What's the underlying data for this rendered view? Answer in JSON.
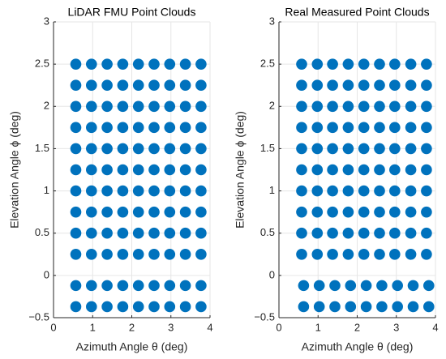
{
  "chart_data": [
    {
      "type": "scatter",
      "title": "LiDAR FMU Point Clouds",
      "xlabel": "Azimuth Angle θ (deg)",
      "ylabel": "Elevation Angle ϕ (deg)",
      "xlim": [
        0,
        4
      ],
      "ylim": [
        -0.5,
        3
      ],
      "xticks": [
        0,
        1,
        2,
        3,
        4
      ],
      "yticks": [
        {
          "value": -0.5,
          "label": "−0.5"
        },
        0,
        0.5,
        1,
        1.5,
        2,
        2.5,
        3
      ],
      "grid": true,
      "color": "#0072bd",
      "rows": [
        {
          "y": 2.5,
          "x": [
            0.57,
            0.97,
            1.37,
            1.77,
            2.17,
            2.57,
            2.97,
            3.37,
            3.77
          ]
        },
        {
          "y": 2.25,
          "x": [
            0.57,
            0.97,
            1.37,
            1.77,
            2.17,
            2.57,
            2.97,
            3.37,
            3.77
          ]
        },
        {
          "y": 2.0,
          "x": [
            0.57,
            0.97,
            1.37,
            1.77,
            2.17,
            2.57,
            2.97,
            3.37,
            3.77
          ]
        },
        {
          "y": 1.75,
          "x": [
            0.57,
            0.97,
            1.37,
            1.77,
            2.17,
            2.57,
            2.97,
            3.37,
            3.77
          ]
        },
        {
          "y": 1.5,
          "x": [
            0.57,
            0.97,
            1.37,
            1.77,
            2.17,
            2.57,
            2.97,
            3.37,
            3.77
          ]
        },
        {
          "y": 1.25,
          "x": [
            0.57,
            0.97,
            1.37,
            1.77,
            2.17,
            2.57,
            2.97,
            3.37,
            3.77
          ]
        },
        {
          "y": 1.0,
          "x": [
            0.57,
            0.97,
            1.37,
            1.77,
            2.17,
            2.57,
            2.97,
            3.37,
            3.77
          ]
        },
        {
          "y": 0.75,
          "x": [
            0.57,
            0.97,
            1.37,
            1.77,
            2.17,
            2.57,
            2.97,
            3.37,
            3.77
          ]
        },
        {
          "y": 0.5,
          "x": [
            0.57,
            0.97,
            1.37,
            1.77,
            2.17,
            2.57,
            2.97,
            3.37,
            3.77
          ]
        },
        {
          "y": 0.25,
          "x": [
            0.57,
            0.97,
            1.37,
            1.77,
            2.17,
            2.57,
            2.97,
            3.37,
            3.77
          ]
        },
        {
          "y": -0.12,
          "x": [
            0.57,
            0.97,
            1.37,
            1.77,
            2.17,
            2.57,
            2.97,
            3.37,
            3.77
          ]
        },
        {
          "y": -0.37,
          "x": [
            0.57,
            0.97,
            1.37,
            1.77,
            2.17,
            2.57,
            2.97,
            3.37,
            3.77
          ]
        }
      ]
    },
    {
      "type": "scatter",
      "title": "Real Measured Point Clouds",
      "xlabel": "Azimuth Angle θ (deg)",
      "ylabel": "Elevation Angle ϕ (deg)",
      "xlim": [
        0,
        4
      ],
      "ylim": [
        -0.5,
        3
      ],
      "xticks": [
        0,
        1,
        2,
        3,
        4
      ],
      "yticks": [
        {
          "value": -0.5,
          "label": "−0.5"
        },
        0,
        0.5,
        1,
        1.5,
        2,
        2.5,
        3
      ],
      "grid": true,
      "color": "#0072bd",
      "rows": [
        {
          "y": 2.5,
          "x": [
            0.58,
            0.98,
            1.37,
            1.77,
            2.17,
            2.57,
            2.96,
            3.37,
            3.77
          ]
        },
        {
          "y": 2.25,
          "x": [
            0.58,
            0.98,
            1.37,
            1.77,
            2.17,
            2.57,
            2.96,
            3.37,
            3.77
          ]
        },
        {
          "y": 2.0,
          "x": [
            0.58,
            0.98,
            1.37,
            1.77,
            2.17,
            2.57,
            2.96,
            3.37,
            3.77
          ]
        },
        {
          "y": 1.75,
          "x": [
            0.58,
            0.98,
            1.37,
            1.77,
            2.17,
            2.57,
            2.96,
            3.37,
            3.77
          ]
        },
        {
          "y": 1.5,
          "x": [
            0.58,
            0.98,
            1.37,
            1.77,
            2.17,
            2.57,
            2.96,
            3.37,
            3.77
          ]
        },
        {
          "y": 1.25,
          "x": [
            0.58,
            0.98,
            1.37,
            1.77,
            2.17,
            2.57,
            2.96,
            3.37,
            3.77
          ]
        },
        {
          "y": 1.0,
          "x": [
            0.58,
            0.98,
            1.37,
            1.77,
            2.17,
            2.57,
            2.96,
            3.37,
            3.77
          ]
        },
        {
          "y": 0.75,
          "x": [
            0.58,
            0.98,
            1.37,
            1.77,
            2.17,
            2.57,
            2.96,
            3.37,
            3.77
          ]
        },
        {
          "y": 0.5,
          "x": [
            0.58,
            0.98,
            1.37,
            1.77,
            2.17,
            2.57,
            2.96,
            3.37,
            3.77
          ]
        },
        {
          "y": 0.25,
          "x": [
            0.58,
            0.98,
            1.37,
            1.77,
            2.17,
            2.57,
            2.96,
            3.37,
            3.77
          ]
        },
        {
          "y": -0.12,
          "x": [
            0.63,
            1.03,
            1.43,
            1.83,
            2.23,
            2.63,
            3.03,
            3.43,
            3.83
          ]
        },
        {
          "y": -0.37,
          "x": [
            0.63,
            1.03,
            1.43,
            1.83,
            2.23,
            2.63,
            3.03,
            3.43,
            3.83
          ]
        }
      ]
    }
  ]
}
